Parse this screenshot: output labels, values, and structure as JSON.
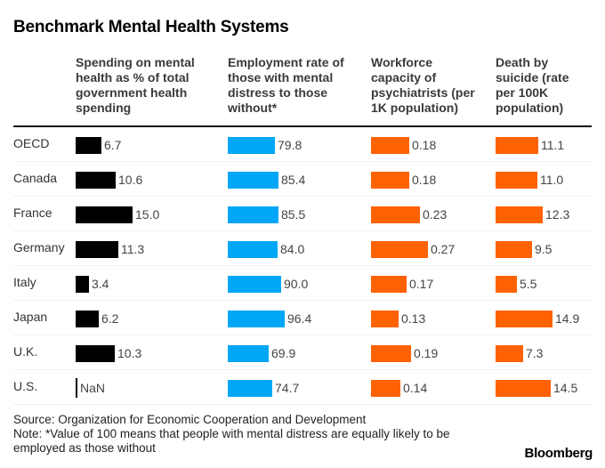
{
  "title": "Benchmark Mental Health Systems",
  "chart_data": {
    "type": "table",
    "title": "Benchmark Mental Health Systems",
    "rows": [
      "OECD",
      "Canada",
      "France",
      "Germany",
      "Italy",
      "Japan",
      "U.K.",
      "U.S."
    ],
    "columns": [
      {
        "header": "Spending on mental health as % of total government health spending",
        "header_lines": [
          "Spending on mental",
          "health as % of total",
          "government health",
          "spending"
        ],
        "color": "#000000",
        "values": [
          6.7,
          10.6,
          15.0,
          11.3,
          3.4,
          6.2,
          10.3,
          null
        ],
        "labels": [
          "6.7",
          "10.6",
          "15.0",
          "11.3",
          "3.4",
          "6.2",
          "10.3",
          "NaN"
        ]
      },
      {
        "header": "Employment rate of those with mental distress to those without*",
        "header_lines": [
          "Employment rate of",
          "those with mental",
          "distress to those",
          "without*"
        ],
        "color": "#00a7f7",
        "values": [
          79.8,
          85.4,
          85.5,
          84.0,
          90.0,
          96.4,
          69.9,
          74.7
        ],
        "labels": [
          "79.8",
          "85.4",
          "85.5",
          "84.0",
          "90.0",
          "96.4",
          "69.9",
          "74.7"
        ]
      },
      {
        "header": "Workforce capacity of psychiatrists (per 1K population)",
        "header_lines": [
          "Workforce",
          "capacity of",
          "psychiatrists (per",
          "1K population)"
        ],
        "color": "#ff6200",
        "values": [
          0.18,
          0.18,
          0.23,
          0.27,
          0.17,
          0.13,
          0.19,
          0.14
        ],
        "labels": [
          "0.18",
          "0.18",
          "0.23",
          "0.27",
          "0.17",
          "0.13",
          "0.19",
          "0.14"
        ]
      },
      {
        "header": "Death by suicide (rate per 100K population)",
        "header_lines": [
          "Death by",
          "suicide (rate",
          "per 100K",
          "population)"
        ],
        "color": "#ff6200",
        "values": [
          11.1,
          11.0,
          12.3,
          9.5,
          5.5,
          14.9,
          7.3,
          14.5
        ],
        "labels": [
          "11.1",
          "11.0",
          "12.3",
          "9.5",
          "5.5",
          "14.9",
          "7.3",
          "14.5"
        ]
      }
    ]
  },
  "footer": {
    "source": "Source: Organization for Economic Cooperation and Development",
    "note_line1": "Note: *Value of 100 means that people with mental distress are equally likely to be",
    "note_line2": "employed as those without"
  },
  "logo": "Bloomberg"
}
